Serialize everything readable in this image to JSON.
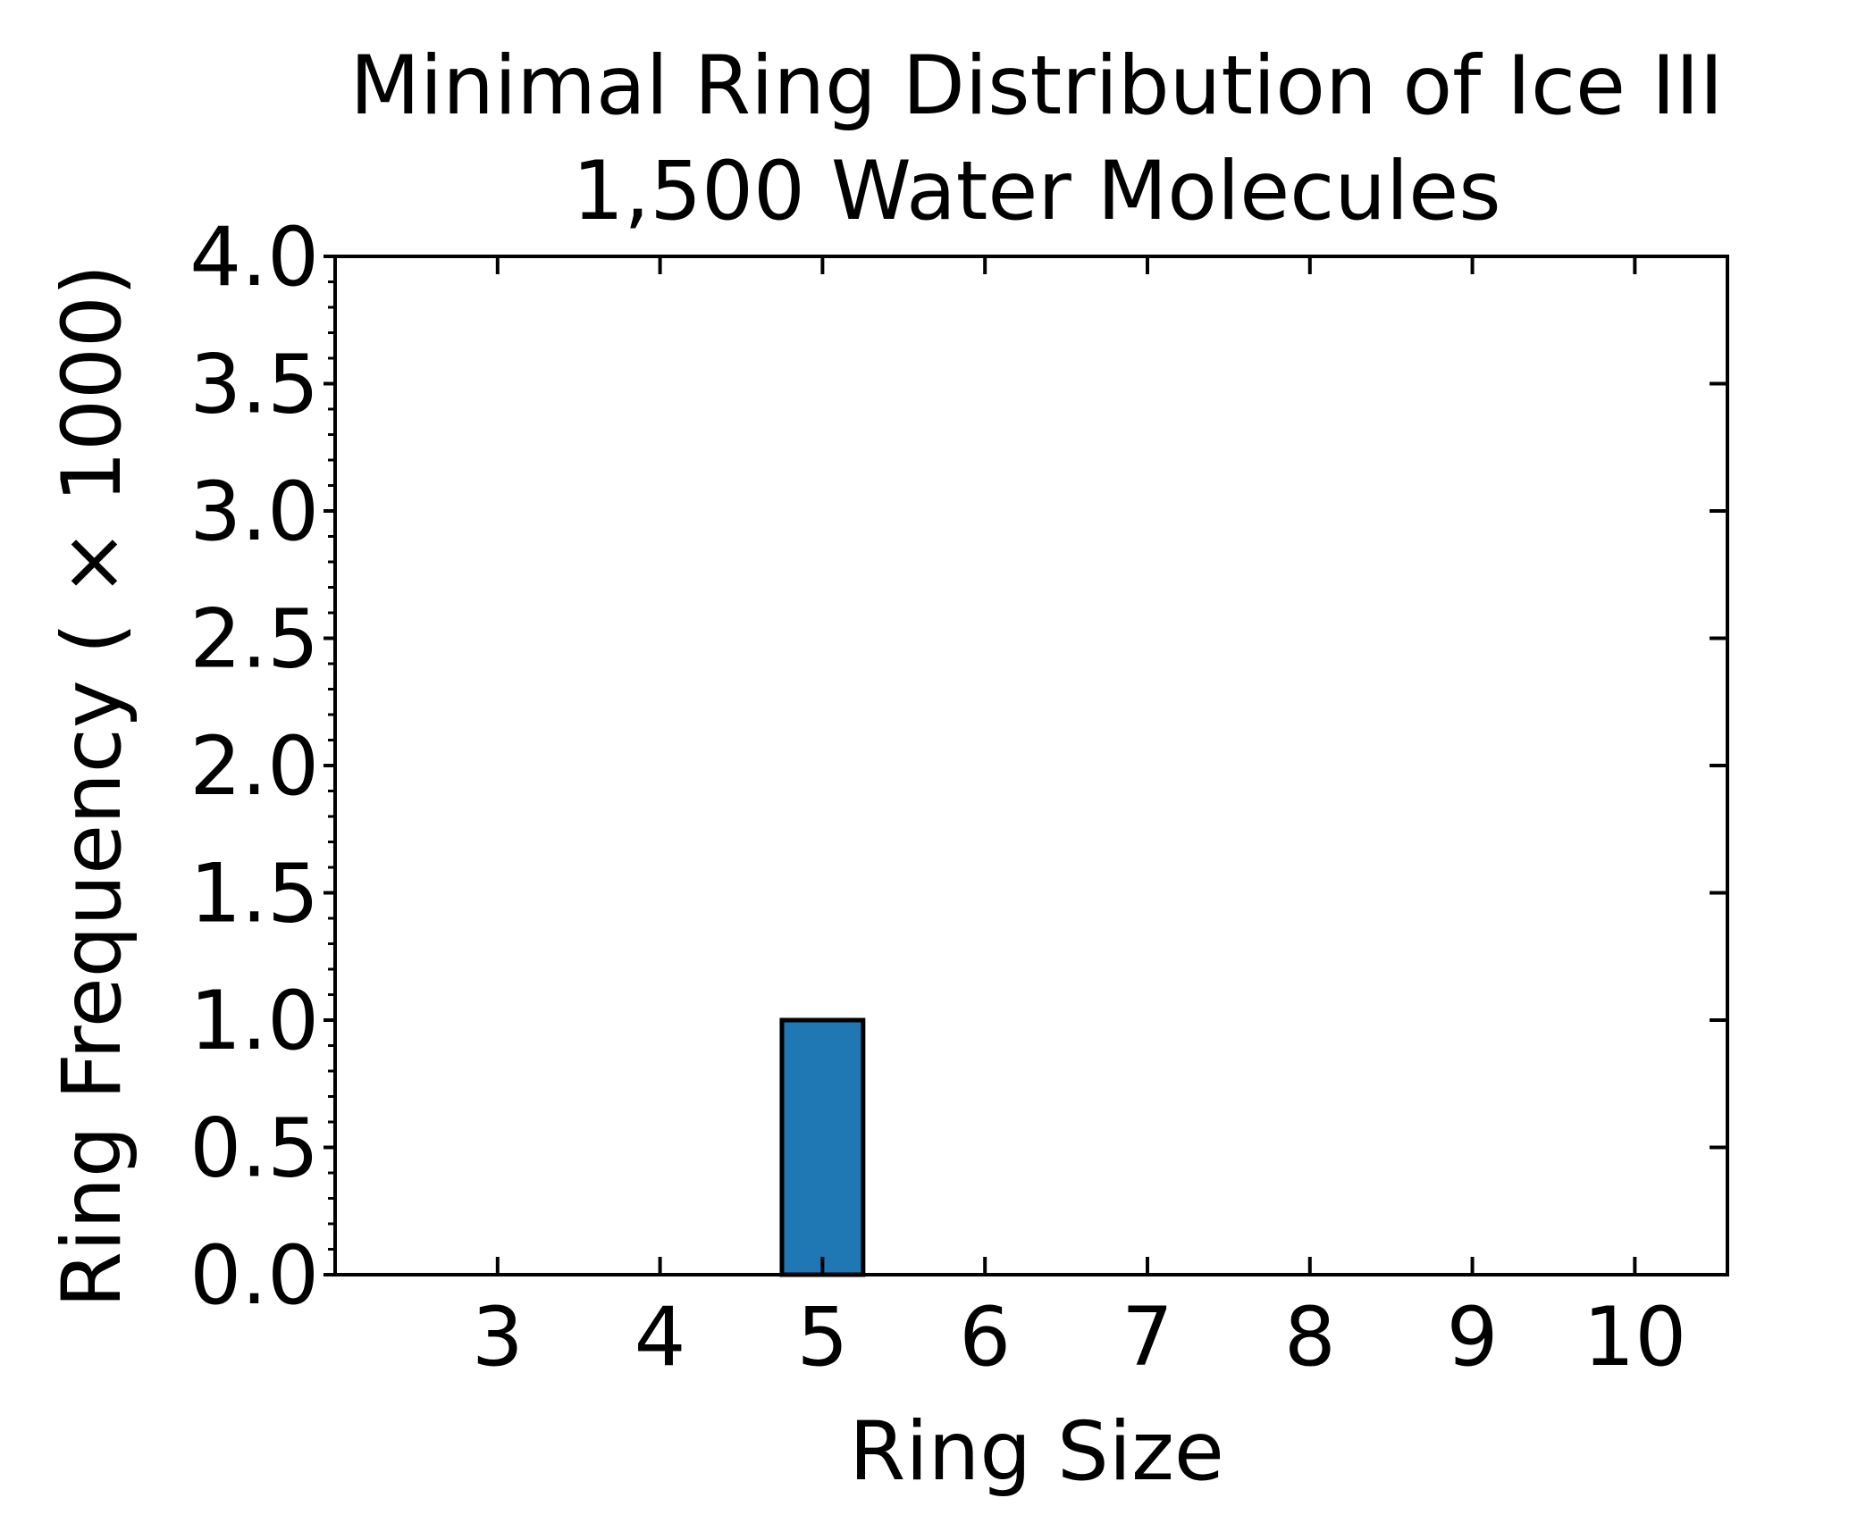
{
  "chart_data": {
    "type": "bar",
    "title": "Minimal Ring Distribution of Ice III",
    "subtitle": "1,500 Water Molecules",
    "xlabel": "Ring Size",
    "ylabel": "Ring Frequency ( × 1000)",
    "categories": [
      3,
      4,
      5,
      6,
      7,
      8,
      9,
      10
    ],
    "values": [
      0,
      0,
      1.0,
      0,
      0,
      0,
      0,
      0
    ],
    "xlim": [
      2,
      10.57
    ],
    "ylim": [
      0,
      4.0
    ],
    "x_ticks": [
      "3",
      "4",
      "5",
      "6",
      "7",
      "8",
      "9",
      "10"
    ],
    "y_ticks": [
      "0.0",
      "0.5",
      "1.0",
      "1.5",
      "2.0",
      "2.5",
      "3.0",
      "3.5",
      "4.0"
    ],
    "bar_color": "#1f77b4",
    "edge_color": "#000000",
    "grid": false,
    "legend": null
  }
}
